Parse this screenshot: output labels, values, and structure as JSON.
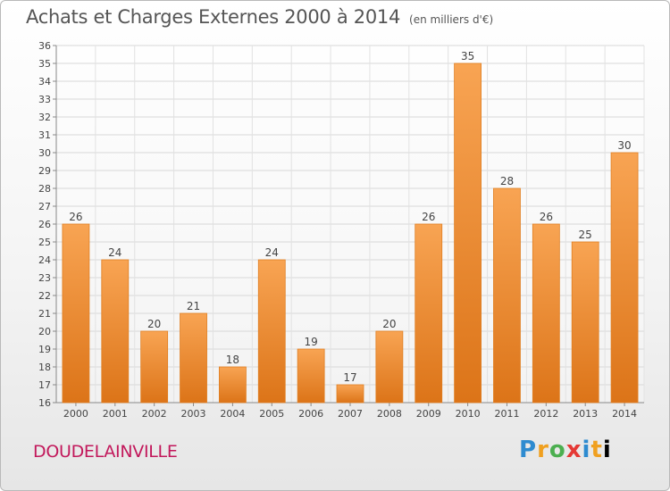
{
  "header": {
    "title": "Achats et Charges Externes 2000 à 2014",
    "subtitle": "(en milliers d'€)"
  },
  "commune": "DOUDELAINVILLE",
  "logo": "Proxiti",
  "chart_data": {
    "type": "bar",
    "title": "Achats et Charges Externes 2000 à 2014",
    "subtitle": "(en milliers d'€)",
    "xlabel": "",
    "ylabel": "",
    "categories": [
      "2000",
      "2001",
      "2002",
      "2003",
      "2004",
      "2005",
      "2006",
      "2007",
      "2008",
      "2009",
      "2010",
      "2011",
      "2012",
      "2013",
      "2014"
    ],
    "values": [
      26,
      24,
      20,
      21,
      18,
      24,
      19,
      17,
      20,
      26,
      35,
      28,
      26,
      25,
      30
    ],
    "ylim": [
      16,
      36
    ],
    "yticks": [
      16,
      17,
      18,
      19,
      20,
      21,
      22,
      23,
      24,
      25,
      26,
      27,
      28,
      29,
      30,
      31,
      32,
      33,
      34,
      35,
      36
    ],
    "grid": true,
    "bar_color": "#f0912f"
  }
}
